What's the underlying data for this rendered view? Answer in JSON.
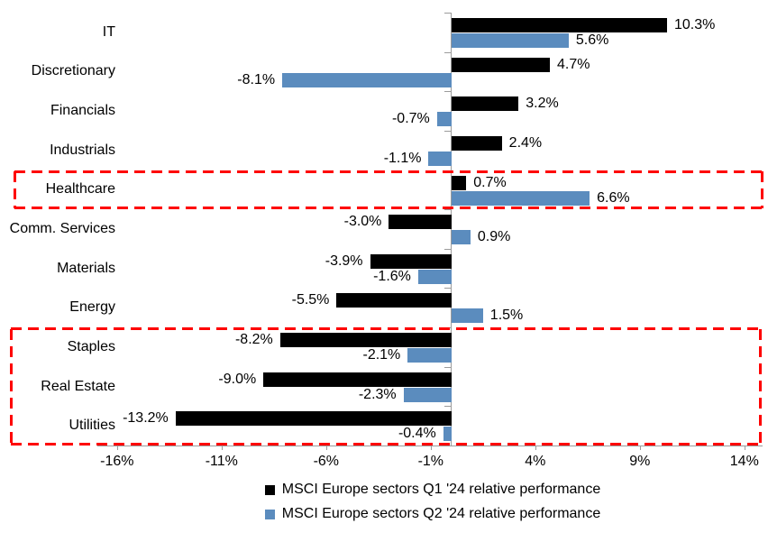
{
  "chart_data": {
    "type": "bar",
    "orientation": "horizontal",
    "title": "",
    "xlabel": "",
    "ylabel": "",
    "grid": false,
    "legend_position": "bottom",
    "categories": [
      "IT",
      "Discretionary",
      "Financials",
      "Industrials",
      "Healthcare",
      "Comm. Services",
      "Materials",
      "Energy",
      "Staples",
      "Real Estate",
      "Utilities"
    ],
    "series": [
      {
        "name": "MSCI Europe sectors Q1 '24 relative performance",
        "color": "#000000",
        "values": [
          10.3,
          4.7,
          3.2,
          2.4,
          0.7,
          -3.0,
          -3.9,
          -5.5,
          -8.2,
          -9.0,
          -13.2
        ],
        "labels": [
          "10.3%",
          "4.7%",
          "3.2%",
          "2.4%",
          "0.7%",
          "-3.0%",
          "-3.9%",
          "-5.5%",
          "-8.2%",
          "-9.0%",
          "-13.2%"
        ]
      },
      {
        "name": "MSCI Europe sectors Q2 '24 relative performance",
        "color": "#5B8CBE",
        "values": [
          5.6,
          -8.1,
          -0.7,
          -1.1,
          6.6,
          0.9,
          -1.6,
          1.5,
          -2.1,
          -2.3,
          -0.4
        ],
        "labels": [
          "5.6%",
          "-8.1%",
          "-0.7%",
          "-1.1%",
          "6.6%",
          "0.9%",
          "-1.6%",
          "1.5%",
          "-2.1%",
          "-2.3%",
          "-0.4%"
        ]
      }
    ],
    "x_ticks": [
      {
        "label": "-16%",
        "value": -16
      },
      {
        "label": "-11%",
        "value": -11
      },
      {
        "label": "-6%",
        "value": -6
      },
      {
        "label": "-1%",
        "value": -1
      },
      {
        "label": "4%",
        "value": 4
      },
      {
        "label": "9%",
        "value": 9
      },
      {
        "label": "14%",
        "value": 14
      }
    ],
    "xlim": [
      -16.9,
      14.9
    ],
    "highlight_boxes": [
      {
        "color": "#FE0000",
        "first_row": 4,
        "last_row": 4,
        "note": "Healthcare"
      },
      {
        "color": "#FE0000",
        "first_row": 8,
        "last_row": 10,
        "note": "Staples, Real Estate, Utilities"
      }
    ]
  }
}
